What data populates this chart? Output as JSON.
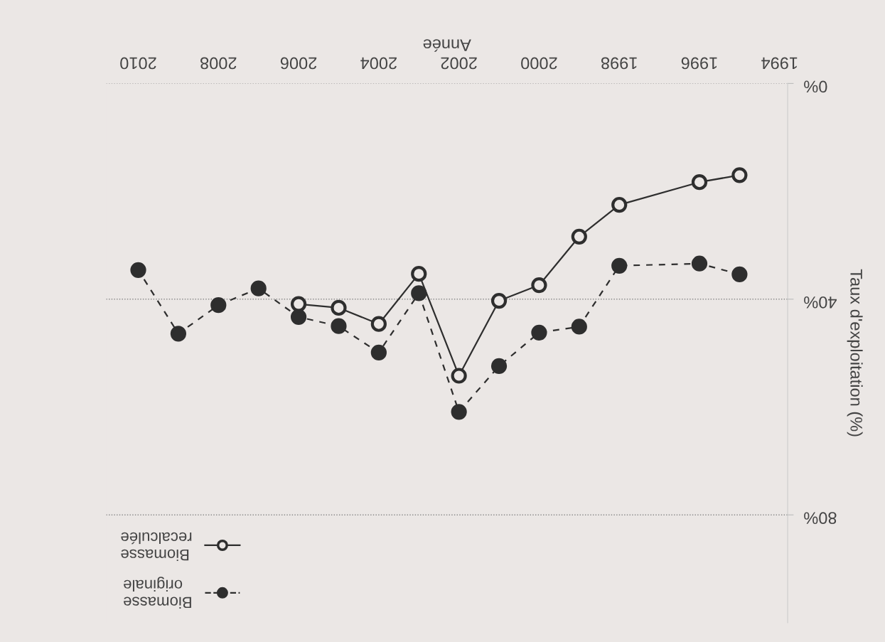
{
  "chart_data": {
    "type": "line",
    "xlabel": "Année",
    "ylabel": "Taux d'exploitation (%)",
    "xlim": [
      2010.8,
      1993.8
    ],
    "ylim": [
      100,
      0
    ],
    "xticks": [
      1994,
      1996,
      1998,
      2000,
      2002,
      2004,
      2006,
      2008,
      2010
    ],
    "yticks": [
      {
        "value": 0,
        "label": "0%"
      },
      {
        "value": 40,
        "label": "40%"
      },
      {
        "value": 80,
        "label": "80%"
      }
    ],
    "grid": "y",
    "legend": "bottom left",
    "series": [
      {
        "name": "Biomasse recalculée",
        "color": "#2e2e2e",
        "marker": "circle",
        "line_style": "solid",
        "x": [
          1995,
          1996,
          1998,
          1999,
          2000,
          2001,
          2002,
          2003,
          2004,
          2005,
          2006
        ],
        "values": [
          17.0,
          18.3,
          22.5,
          28.4,
          37.4,
          40.3,
          54.2,
          35.3,
          44.6,
          41.6,
          40.9
        ]
      },
      {
        "name": "Biomasse originale",
        "color": "#2e2e2e",
        "marker": "circle",
        "line_style": "dashed",
        "x": [
          1995,
          1996,
          1998,
          1999,
          2000,
          2001,
          2002,
          2003,
          2004,
          2005,
          2006,
          2007,
          2008,
          2009,
          2010
        ],
        "values": [
          35.4,
          33.4,
          33.8,
          45.1,
          46.2,
          52.4,
          60.9,
          38.9,
          49.9,
          45.0,
          43.3,
          38.0,
          41.1,
          46.4,
          34.6
        ]
      }
    ]
  }
}
